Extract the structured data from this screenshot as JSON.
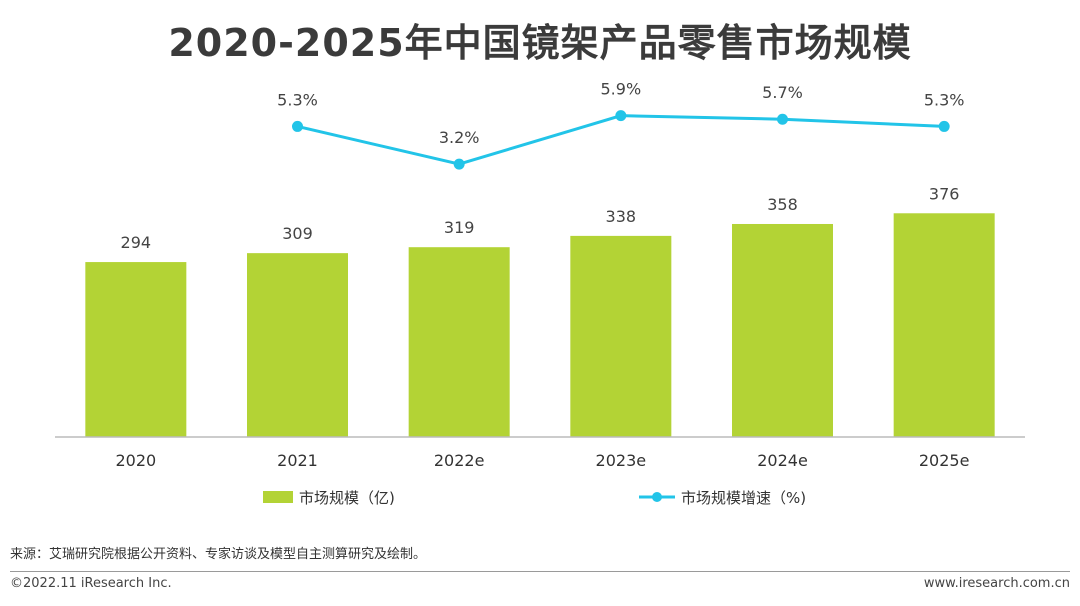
{
  "title": "2020-2025年中国镜架产品零售市场规模",
  "chart_data": {
    "type": "bar",
    "categories": [
      "2020",
      "2021",
      "2022e",
      "2023e",
      "2024e",
      "2025e"
    ],
    "series": [
      {
        "name": "市场规模（亿)",
        "kind": "bar",
        "values": [
          294,
          309,
          319,
          338,
          358,
          376
        ],
        "labels": [
          "294",
          "309",
          "319",
          "338",
          "358",
          "376"
        ],
        "color": "#b3d335"
      },
      {
        "name": "市场规模增速（%)",
        "kind": "line",
        "values": [
          null,
          5.3,
          3.2,
          5.9,
          5.7,
          5.3
        ],
        "labels": [
          "",
          "5.3%",
          "3.2%",
          "5.9%",
          "5.7%",
          "5.3%"
        ],
        "color": "#22c4e8"
      }
    ],
    "bar_axis_range": [
      0,
      400
    ],
    "line_axis_range": [
      -12,
      9
    ],
    "xlabel": "",
    "ylabel": "",
    "grid": false,
    "legend_position": "bottom"
  },
  "source": "来源：艾瑞研究院根据公开资料、专家访谈及模型自主测算研究及绘制。",
  "footer": {
    "copyright": "©2022.11 iResearch Inc.",
    "website": "www.iresearch.com.cn"
  }
}
